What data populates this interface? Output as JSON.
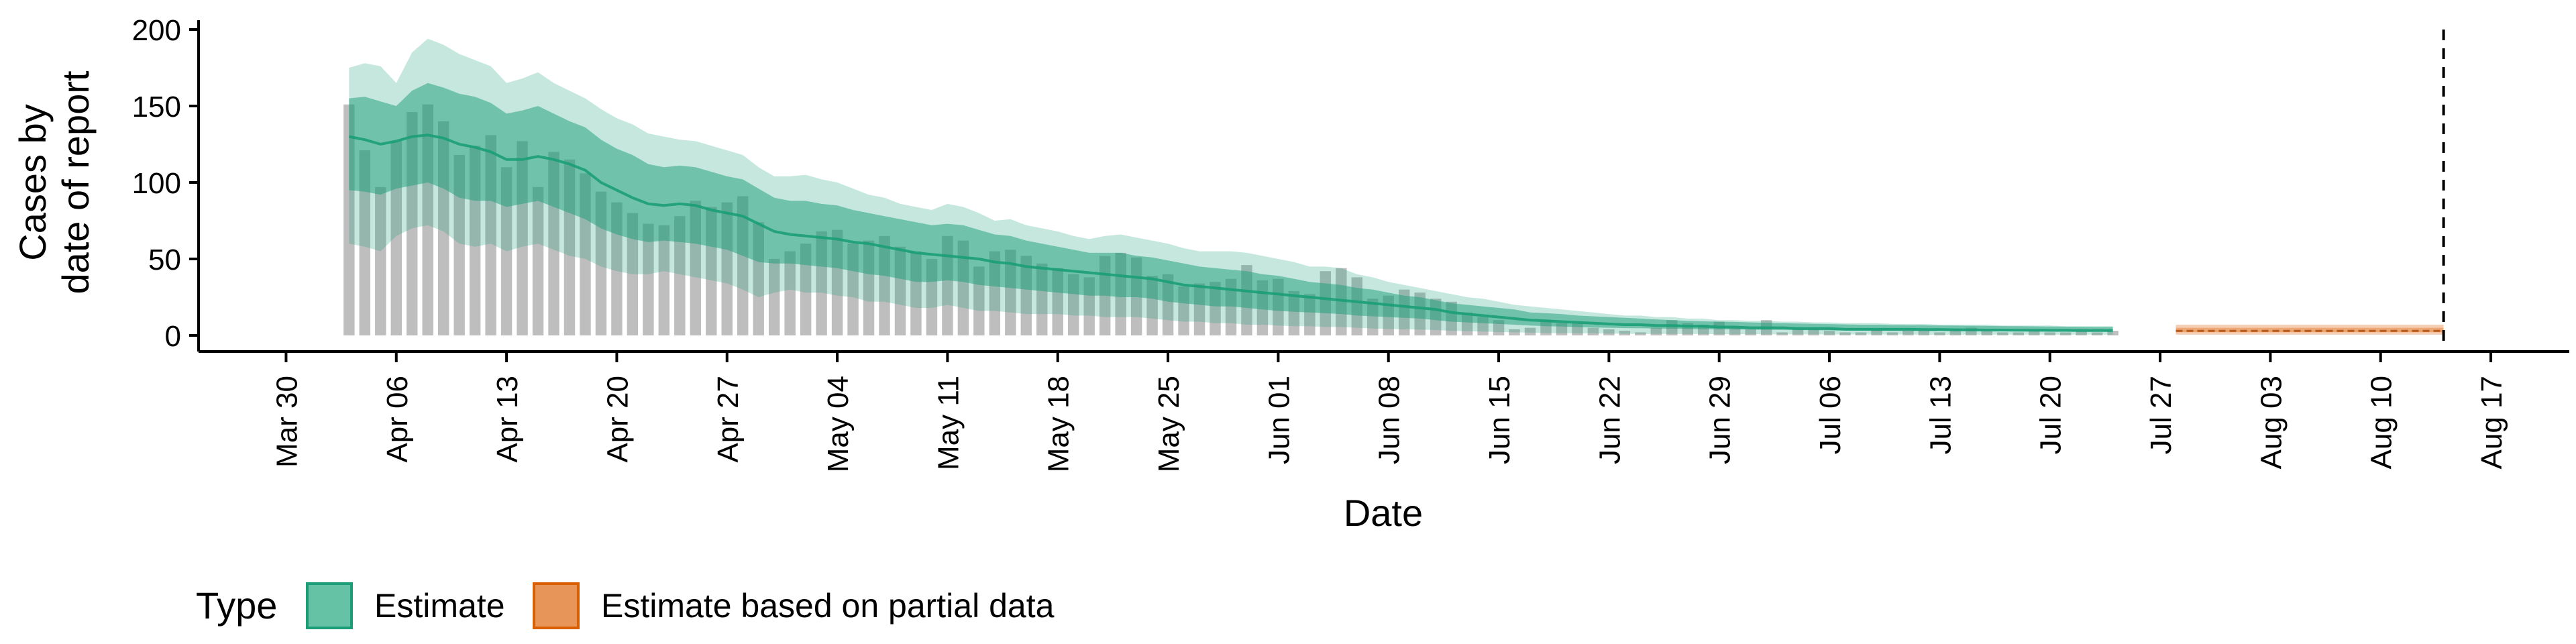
{
  "chart_data": {
    "type": "area",
    "xlabel": "Date",
    "ylabel_lines": [
      "Cases by",
      "date of report"
    ],
    "ylim": [
      0,
      200
    ],
    "y_ticks": [
      0,
      50,
      100,
      150,
      200
    ],
    "x_ticks": [
      "Mar 30",
      "Apr 06",
      "Apr 13",
      "Apr 20",
      "Apr 27",
      "May 04",
      "May 11",
      "May 18",
      "May 25",
      "Jun 01",
      "Jun 08",
      "Jun 15",
      "Jun 22",
      "Jun 29",
      "Jul 06",
      "Jul 13",
      "Jul 20",
      "Jul 27",
      "Aug 03",
      "Aug 10",
      "Aug 17"
    ],
    "x_range": [
      "2020-03-27",
      "2020-08-19"
    ],
    "forecast_line_date": "2020-08-14",
    "grid": false,
    "legend": {
      "title": "Type",
      "position": "bottom-left",
      "items": [
        {
          "label": "Estimate",
          "color": "#66c2a5",
          "border": "#1b9e77"
        },
        {
          "label": "Estimate based on partial data",
          "color": "#e8955a",
          "border": "#d95f02"
        }
      ]
    },
    "colors": {
      "bars": "#b3b3b3",
      "estimate": "#1b9e77",
      "partial": "#e8955a",
      "median": "#1b9e77"
    },
    "bars": {
      "start": "2020-04-03",
      "values": [
        151,
        121,
        97,
        127,
        146,
        151,
        140,
        118,
        124,
        131,
        110,
        127,
        97,
        120,
        115,
        106,
        94,
        87,
        80,
        73,
        72,
        78,
        88,
        84,
        87,
        91,
        74,
        50,
        55,
        60,
        68,
        69,
        60,
        62,
        65,
        58,
        55,
        50,
        65,
        62,
        45,
        55,
        56,
        52,
        47,
        44,
        40,
        38,
        52,
        54,
        51,
        39,
        40,
        32,
        34,
        35,
        37,
        46,
        36,
        37,
        29,
        27,
        42,
        44,
        38,
        24,
        26,
        30,
        28,
        24,
        22,
        15,
        12,
        10,
        4,
        5,
        10,
        8,
        8,
        5,
        4,
        3,
        2,
        5,
        10,
        8,
        7,
        9,
        5,
        4,
        10,
        2,
        4,
        4,
        3,
        2,
        2,
        4,
        2,
        3,
        3,
        2,
        4,
        5,
        3,
        2,
        2,
        3,
        2,
        2,
        3,
        2,
        3
      ]
    },
    "estimate": {
      "start": "2020-04-03",
      "median": [
        130,
        128,
        125,
        127,
        130,
        131,
        129,
        125,
        123,
        120,
        115,
        115,
        117,
        115,
        112,
        108,
        100,
        95,
        90,
        86,
        85,
        86,
        85,
        82,
        80,
        78,
        73,
        68,
        66,
        65,
        64,
        63,
        61,
        60,
        58,
        56,
        54,
        53,
        52,
        51,
        50,
        48,
        47,
        45,
        44,
        43,
        42,
        41,
        40,
        39,
        38,
        37,
        35,
        33,
        32,
        31,
        30,
        29,
        28,
        27,
        26,
        25,
        24,
        23,
        22,
        21,
        20,
        19,
        18,
        17,
        15,
        14,
        13,
        12,
        11,
        10,
        9.5,
        9,
        8.5,
        8,
        7.5,
        7,
        7,
        6.5,
        6.5,
        6,
        6,
        5.5,
        5.5,
        5,
        5,
        5,
        4.5,
        4.5,
        4.5,
        4,
        4,
        4,
        4,
        4,
        3.8,
        3.8,
        3.7,
        3.6,
        3.5,
        3.5,
        3.4,
        3.4,
        3.3,
        3.3,
        3.2,
        3.2,
        3.2
      ],
      "lower90": [
        60,
        58,
        55,
        65,
        70,
        72,
        68,
        60,
        58,
        60,
        55,
        58,
        60,
        56,
        52,
        50,
        45,
        42,
        40,
        40,
        42,
        40,
        38,
        36,
        34,
        30,
        25,
        28,
        30,
        28,
        28,
        26,
        25,
        22,
        22,
        20,
        18,
        18,
        20,
        18,
        16,
        16,
        15,
        14,
        14,
        14,
        13,
        13,
        12,
        12,
        12,
        11,
        10,
        9,
        9,
        8,
        8,
        7,
        7,
        6.5,
        6,
        6,
        5.5,
        5.5,
        5,
        4.5,
        4.2,
        4,
        3.8,
        3.5,
        3,
        2.8,
        2.5,
        2.2,
        2,
        1.8,
        1.6,
        1.5,
        1.4,
        1.3,
        1.2,
        1.1,
        1,
        1,
        1,
        0.9,
        0.9,
        0.8,
        0.8,
        0.8,
        0.7,
        0.7,
        0.7,
        0.7,
        0.6,
        0.6,
        0.6,
        0.6,
        0.6,
        0.6,
        0.5,
        0.5,
        0.5,
        0.5,
        0.5,
        0.5,
        0.5,
        0.5,
        0.5,
        0.5,
        0.5,
        0.5,
        0.5
      ],
      "upper90": [
        175,
        178,
        176,
        165,
        185,
        194,
        190,
        184,
        180,
        176,
        165,
        168,
        172,
        165,
        160,
        155,
        148,
        142,
        138,
        132,
        130,
        128,
        127,
        124,
        121,
        118,
        110,
        104,
        104,
        105,
        102,
        100,
        96,
        92,
        90,
        86,
        84,
        82,
        86,
        84,
        80,
        75,
        76,
        72,
        70,
        68,
        65,
        63,
        65,
        66,
        64,
        62,
        60,
        57,
        55,
        55,
        55,
        54,
        52,
        50,
        48,
        45,
        45,
        44,
        40,
        38,
        35,
        33,
        31,
        29,
        27,
        25,
        24,
        22,
        20,
        19,
        18,
        17,
        16,
        15,
        14,
        13,
        13,
        12,
        12,
        11,
        11,
        10,
        10,
        9.5,
        9.5,
        9,
        9,
        8.5,
        8.5,
        8,
        8,
        8,
        7.5,
        7.5,
        7.5,
        7,
        7,
        7,
        7,
        6.5,
        6.5,
        6.5,
        6.5,
        6,
        6,
        6,
        6
      ],
      "lower50": [
        95,
        94,
        92,
        96,
        98,
        100,
        96,
        90,
        88,
        88,
        84,
        86,
        88,
        84,
        80,
        76,
        70,
        66,
        63,
        61,
        62,
        61,
        60,
        58,
        56,
        52,
        48,
        47,
        47,
        46,
        45,
        44,
        42,
        40,
        39,
        37,
        35,
        35,
        36,
        35,
        33,
        32,
        31,
        30,
        29,
        28,
        27,
        26,
        26,
        25,
        25,
        24,
        22,
        21,
        20,
        19,
        19,
        18,
        17,
        16,
        15.5,
        15,
        14.5,
        14,
        13,
        12.5,
        12,
        11.5,
        11,
        10,
        9,
        8.5,
        8,
        7.5,
        7,
        6.5,
        6,
        5.8,
        5.5,
        5.2,
        5,
        4.8,
        4.7,
        4.5,
        4.4,
        4.2,
        4.1,
        4,
        3.9,
        3.8,
        3.7,
        3.6,
        3.5,
        3.4,
        3.3,
        3.2,
        3.1,
        3.1,
        3,
        3,
        2.9,
        2.9,
        2.8,
        2.8,
        2.8,
        2.7,
        2.7,
        2.7,
        2.6,
        2.6,
        2.6,
        2.5,
        2.5
      ],
      "upper50": [
        155,
        156,
        153,
        150,
        160,
        165,
        162,
        158,
        156,
        152,
        145,
        147,
        150,
        145,
        140,
        136,
        128,
        122,
        118,
        112,
        110,
        111,
        110,
        107,
        104,
        102,
        96,
        90,
        88,
        88,
        86,
        85,
        82,
        80,
        78,
        76,
        74,
        72,
        73,
        72,
        69,
        66,
        65,
        62,
        60,
        58,
        56,
        54,
        54,
        54,
        52,
        51,
        49,
        47,
        45,
        44,
        43,
        42,
        40,
        39,
        37,
        35,
        34,
        33,
        31,
        30,
        28,
        26,
        25,
        23,
        21,
        20,
        19,
        18,
        17,
        15,
        14.5,
        14,
        13,
        12.5,
        12,
        11.5,
        11,
        10.5,
        10,
        9.5,
        9.2,
        9,
        8.8,
        8.5,
        8.2,
        8,
        7.8,
        7.6,
        7.4,
        7.2,
        7,
        7,
        6.8,
        6.7,
        6.6,
        6.5,
        6.4,
        6.3,
        6.2,
        6.1,
        6,
        5.9,
        5.8,
        5.7,
        5.6,
        5.5,
        5.5
      ]
    },
    "partial": {
      "start": "2020-07-28",
      "median": [
        3,
        3,
        3,
        3,
        3,
        3,
        3,
        3,
        3,
        3,
        3,
        3,
        3,
        3,
        3,
        3,
        3,
        3
      ],
      "lower90": [
        0.5,
        0.5,
        0.5,
        0.5,
        0.5,
        0.5,
        0.5,
        0.5,
        0.5,
        0.5,
        0.5,
        0.5,
        0.5,
        0.5,
        0.5,
        0.5,
        0.5,
        0.5
      ],
      "upper90": [
        7,
        7,
        7,
        7,
        7,
        7,
        7,
        7,
        7,
        7,
        7,
        7,
        7,
        7,
        7,
        7,
        7,
        7
      ],
      "lower50": [
        2,
        2,
        2,
        2,
        2,
        2,
        2,
        2,
        2,
        2,
        2,
        2,
        2,
        2,
        2,
        2,
        2,
        2
      ],
      "upper50": [
        5,
        5,
        5,
        5,
        5,
        5,
        5,
        5,
        5,
        5,
        5,
        5,
        5,
        5,
        5,
        5,
        5,
        5
      ]
    }
  }
}
